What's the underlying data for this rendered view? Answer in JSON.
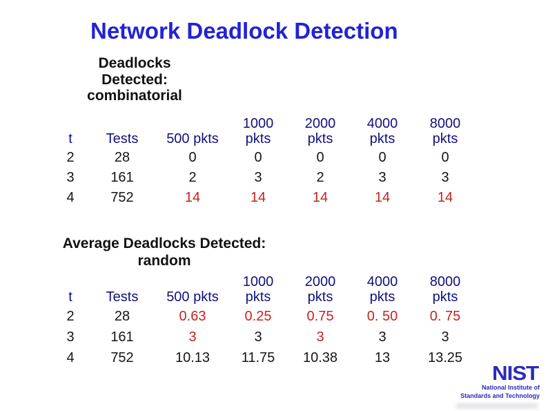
{
  "title": "Network Deadlock Detection",
  "colors": {
    "title_blue": "#2222d6",
    "header_navy": "#10107e",
    "value_black": "#151515",
    "value_red": "#c92121",
    "logo_blue": "#2b2bb8"
  },
  "tables": [
    {
      "heading_lines": "Deadlocks\nDetected:\ncombinatorial",
      "columns": [
        {
          "lines": [
            "t"
          ]
        },
        {
          "lines": [
            "Tests"
          ]
        },
        {
          "lines": [
            "500 pkts"
          ]
        },
        {
          "lines": [
            "1000",
            "pkts"
          ]
        },
        {
          "lines": [
            "2000",
            "pkts"
          ]
        },
        {
          "lines": [
            "4000",
            "pkts"
          ]
        },
        {
          "lines": [
            "8000",
            "pkts"
          ]
        }
      ],
      "rows": [
        {
          "cells": [
            {
              "text": "2",
              "color": "black"
            },
            {
              "text": "28",
              "color": "black"
            },
            {
              "text": "0",
              "color": "black"
            },
            {
              "text": "0",
              "color": "black"
            },
            {
              "text": "0",
              "color": "black"
            },
            {
              "text": "0",
              "color": "black"
            },
            {
              "text": "0",
              "color": "black"
            }
          ]
        },
        {
          "cells": [
            {
              "text": "3",
              "color": "black"
            },
            {
              "text": "161",
              "color": "black"
            },
            {
              "text": "2",
              "color": "black"
            },
            {
              "text": "3",
              "color": "black"
            },
            {
              "text": "2",
              "color": "black"
            },
            {
              "text": "3",
              "color": "black"
            },
            {
              "text": "3",
              "color": "black"
            }
          ]
        },
        {
          "cells": [
            {
              "text": "4",
              "color": "black"
            },
            {
              "text": "752",
              "color": "black"
            },
            {
              "text": "14",
              "color": "red"
            },
            {
              "text": "14",
              "color": "red"
            },
            {
              "text": "14",
              "color": "red"
            },
            {
              "text": "14",
              "color": "red"
            },
            {
              "text": "14",
              "color": "red"
            }
          ]
        }
      ]
    },
    {
      "heading_lines": "Average Deadlocks Detected:\nrandom",
      "columns": [
        {
          "lines": [
            "t"
          ]
        },
        {
          "lines": [
            "Tests"
          ]
        },
        {
          "lines": [
            "500 pkts"
          ]
        },
        {
          "lines": [
            "1000",
            "pkts"
          ]
        },
        {
          "lines": [
            "2000",
            "pkts"
          ]
        },
        {
          "lines": [
            "4000",
            "pkts"
          ]
        },
        {
          "lines": [
            "8000",
            "pkts"
          ]
        }
      ],
      "rows": [
        {
          "cells": [
            {
              "text": "2",
              "color": "black"
            },
            {
              "text": "28",
              "color": "black"
            },
            {
              "text": "0.63",
              "color": "red"
            },
            {
              "text": "0.25",
              "color": "red"
            },
            {
              "text": "0.75",
              "color": "red"
            },
            {
              "text": "0. 50",
              "color": "red"
            },
            {
              "text": "0. 75",
              "color": "red"
            }
          ]
        },
        {
          "cells": [
            {
              "text": "3",
              "color": "black"
            },
            {
              "text": "161",
              "color": "black"
            },
            {
              "text": "3",
              "color": "red"
            },
            {
              "text": "3",
              "color": "black"
            },
            {
              "text": "3",
              "color": "red"
            },
            {
              "text": "3",
              "color": "black"
            },
            {
              "text": "3",
              "color": "black"
            }
          ]
        },
        {
          "cells": [
            {
              "text": "4",
              "color": "black"
            },
            {
              "text": "752",
              "color": "black"
            },
            {
              "text": "10.13",
              "color": "black"
            },
            {
              "text": "11.75",
              "color": "black"
            },
            {
              "text": "10.38",
              "color": "black"
            },
            {
              "text": "13",
              "color": "black"
            },
            {
              "text": "13.25",
              "color": "black"
            }
          ]
        }
      ]
    }
  ],
  "logo": {
    "wordmark": "NIST",
    "line1": "National Institute of",
    "line2": "Standards and Technology"
  }
}
